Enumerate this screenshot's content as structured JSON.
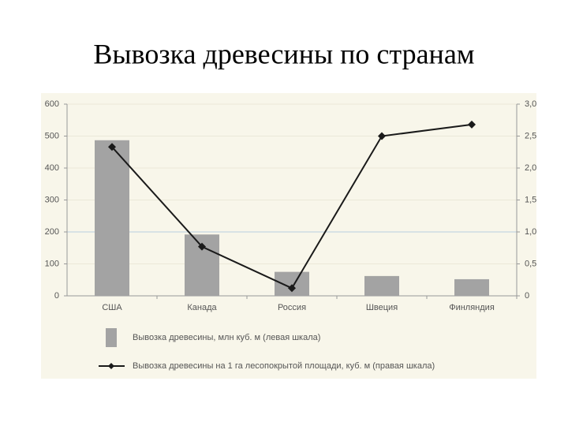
{
  "chart_data": {
    "type": "bar",
    "title": "Вывозка древесины по странам",
    "categories": [
      "США",
      "Канада",
      "Россия",
      "Швеция",
      "Финляндия"
    ],
    "series": [
      {
        "name": "Вывозка древесины, млн куб. м (левая шкала)",
        "color": "#a3a3a3",
        "type": "bar",
        "values": [
          487,
          192,
          75,
          62,
          52
        ]
      },
      {
        "name": "Вывозка древесины на 1 га лесопокрытой площади, куб. м (правая шкала)",
        "color": "#1a1a1a",
        "type": "line",
        "axis": "y2",
        "values": [
          2.33,
          0.77,
          0.12,
          2.5,
          2.68
        ]
      }
    ],
    "ylim": [
      0,
      600
    ],
    "yticks": [
      0,
      100,
      200,
      300,
      400,
      500,
      600
    ],
    "y2lim": [
      0,
      3
    ],
    "y2ticks": [
      0,
      {
        "value": 0.5,
        "label": "0,5"
      },
      {
        "value": 1,
        "label": "1,0"
      },
      {
        "value": 1.5,
        "label": "1,5"
      },
      {
        "value": 2,
        "label": "2,0"
      },
      {
        "value": 2.5,
        "label": "2,5"
      },
      {
        "value": 3,
        "label": "3,0"
      }
    ],
    "grid": true
  }
}
